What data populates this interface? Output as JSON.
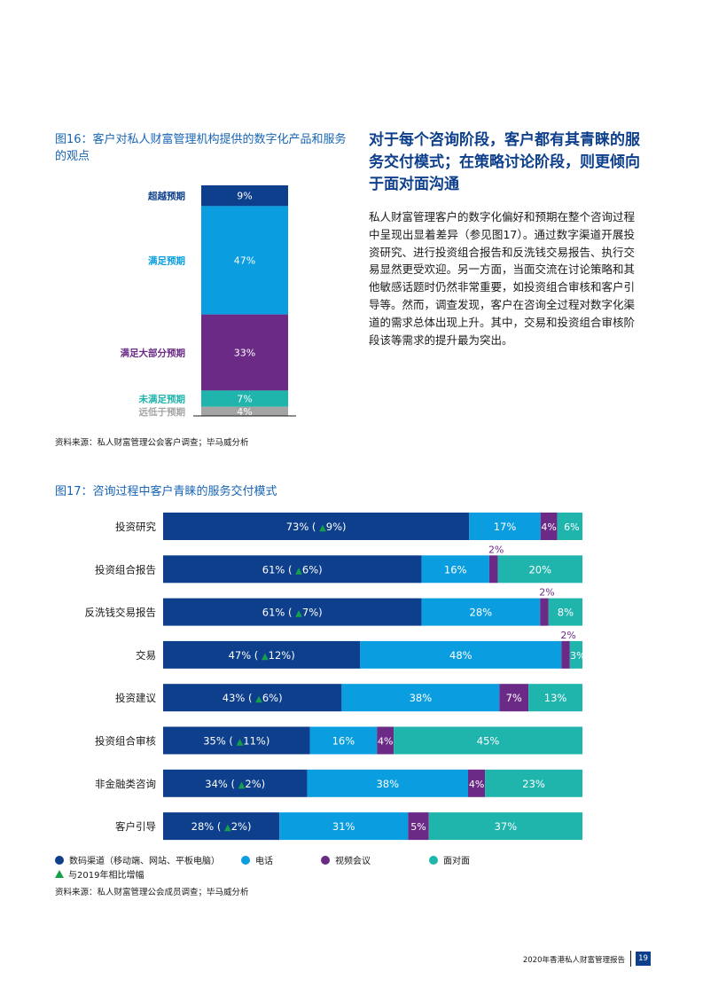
{
  "colors": {
    "digital": "#0d3f8c",
    "phone": "#0a9ee0",
    "video": "#6b2a86",
    "face": "#1fb5ad",
    "below": "#a4a4a4",
    "increase_marker": "#16a04a",
    "title_blue": "#1864b4"
  },
  "figure16": {
    "title": "图16：客户对私人财富管理机构提供的数字化产品和服务的观点",
    "source": "资料来源：私人财富管理公会客户调查；毕马威分析",
    "chart_data": {
      "type": "bar",
      "stacked": true,
      "categories": [
        "超越预期",
        "满足预期",
        "满足大部分预期",
        "未满足预期",
        "远低于预期"
      ],
      "values": [
        9,
        47,
        33,
        7,
        4
      ],
      "value_labels": [
        "9%",
        "47%",
        "33%",
        "7%",
        "4%"
      ],
      "label_colors": [
        "#0d3f8c",
        "#0a9ee0",
        "#6b2a86",
        "#1fb5ad",
        "#a4a4a4"
      ]
    }
  },
  "section": {
    "heading": "对于每个咨询阶段，客户都有其青睐的服务交付模式；在策略讨论阶段，则更倾向于面对面沟通",
    "body": "私人财富管理客户的数字化偏好和预期在整个咨询过程中呈现出显着差异（参见图17）。通过数字渠道开展投资研究、进行投资组合报告和反洗钱交易报告、执行交易显然更受欢迎。另一方面，当面交流在讨论策略和其他敏感话题时仍然非常重要，如投资组合审核和客户引导等。然而，调查发现，客户在咨询全过程对数字化渠道的需求总体出现上升。其中，交易和投资组合审核阶段该等需求的提升最为突出。"
  },
  "figure17": {
    "title": "图17：咨询过程中客户青睐的服务交付模式",
    "source": "资料来源：私人财富管理公会成员调查；毕马威分析",
    "legend": {
      "digital": "数码渠道（移动端、网站、平板电脑）",
      "phone": "电话",
      "video": "视频会议",
      "face": "面对面",
      "increase_note": "与2019年相比增幅"
    },
    "chart_data": {
      "type": "bar",
      "orientation": "horizontal",
      "stacked": true,
      "categories": [
        "投资研究",
        "投资组合报告",
        "反洗钱交易报告",
        "交易",
        "投资建议",
        "投资组合审核",
        "非金融类咨询",
        "客户引导"
      ],
      "series": [
        {
          "name": "数码渠道（移动端、网站、平板电脑）",
          "values": [
            73,
            61,
            61,
            47,
            43,
            35,
            34,
            28
          ]
        },
        {
          "name": "电话",
          "values": [
            17,
            16,
            28,
            48,
            38,
            16,
            38,
            31
          ]
        },
        {
          "name": "视频会议",
          "values": [
            4,
            2,
            2,
            2,
            7,
            4,
            4,
            5
          ]
        },
        {
          "name": "面对面",
          "values": [
            6,
            20,
            8,
            3,
            13,
            45,
            23,
            37
          ]
        }
      ],
      "increase_vs_2019": [
        9,
        6,
        7,
        12,
        6,
        11,
        2,
        2
      ],
      "value_labels": {
        "digital": [
          "73%",
          "61%",
          "61%",
          "47%",
          "43%",
          "35%",
          "34%",
          "28%"
        ],
        "increase": [
          "9%",
          "6%",
          "7%",
          "12%",
          "6%",
          "11%",
          "2%",
          "2%"
        ],
        "phone": [
          "17%",
          "16%",
          "28%",
          "48%",
          "38%",
          "16%",
          "38%",
          "31%"
        ],
        "video": [
          "4%",
          "2%",
          "2%",
          "2%",
          "7%",
          "4%",
          "4%",
          "5%"
        ],
        "face": [
          "6%",
          "20%",
          "8%",
          "3%",
          "13%",
          "45%",
          "23%",
          "37%"
        ]
      }
    }
  },
  "footer": {
    "report": "2020年香港私人财富管理报告",
    "page": "19"
  }
}
